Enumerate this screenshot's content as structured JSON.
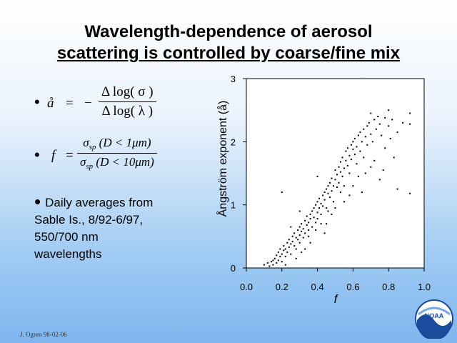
{
  "title": {
    "line1": "Wavelength-dependence of aerosol",
    "line2": "scattering is controlled by coarse/fine mix"
  },
  "formulas": {
    "angstrom": {
      "lhs": "å",
      "eq": "=",
      "minus": "−",
      "numerator": "Δ log( σ )",
      "denominator": "Δ log( λ )"
    },
    "fraction": {
      "lhs": "f",
      "eq": "=",
      "num_sym": "σ",
      "num_sub": "sp",
      "num_arg": " (D < 1μm)",
      "den_sym": "σ",
      "den_sub": "sp",
      "den_arg": " (D < 10μm)"
    }
  },
  "note": {
    "bullet": "•",
    "line1": "Daily averages from",
    "line2": "Sable Is., 8/92-6/97,",
    "line3": "550/700 nm",
    "line4": "wavelengths"
  },
  "footer": "J. Ogren 98-02-06",
  "logo": {
    "text": "NOAA",
    "icon": "noaa-logo-icon"
  },
  "chart_data": {
    "type": "scatter",
    "xlabel": "f",
    "ylabel": "Ångström exponent (å)",
    "xlim": [
      0,
      1.0
    ],
    "ylim": [
      0,
      3
    ],
    "xticks": [
      "0.0",
      "0.2",
      "0.4",
      "0.6",
      "0.8",
      "1.0"
    ],
    "yticks": [
      "0",
      "1",
      "2",
      "3"
    ],
    "grid": false,
    "marker_color": "#000000",
    "points": [
      [
        0.1,
        0.05
      ],
      [
        0.12,
        0.08
      ],
      [
        0.13,
        0.03
      ],
      [
        0.14,
        0.1
      ],
      [
        0.15,
        0.12
      ],
      [
        0.15,
        0.05
      ],
      [
        0.16,
        0.15
      ],
      [
        0.17,
        0.08
      ],
      [
        0.17,
        0.2
      ],
      [
        0.18,
        0.12
      ],
      [
        0.18,
        0.25
      ],
      [
        0.19,
        0.18
      ],
      [
        0.19,
        0.3
      ],
      [
        0.2,
        0.22
      ],
      [
        0.2,
        0.1
      ],
      [
        0.21,
        0.28
      ],
      [
        0.21,
        0.35
      ],
      [
        0.22,
        0.3
      ],
      [
        0.22,
        0.18
      ],
      [
        0.23,
        0.4
      ],
      [
        0.23,
        0.25
      ],
      [
        0.24,
        0.33
      ],
      [
        0.24,
        0.45
      ],
      [
        0.25,
        0.38
      ],
      [
        0.25,
        0.22
      ],
      [
        0.26,
        0.5
      ],
      [
        0.26,
        0.42
      ],
      [
        0.27,
        0.35
      ],
      [
        0.27,
        0.55
      ],
      [
        0.28,
        0.48
      ],
      [
        0.28,
        0.3
      ],
      [
        0.29,
        0.6
      ],
      [
        0.29,
        0.45
      ],
      [
        0.3,
        0.52
      ],
      [
        0.3,
        0.65
      ],
      [
        0.3,
        0.4
      ],
      [
        0.31,
        0.58
      ],
      [
        0.31,
        0.7
      ],
      [
        0.32,
        0.62
      ],
      [
        0.32,
        0.48
      ],
      [
        0.33,
        0.75
      ],
      [
        0.33,
        0.55
      ],
      [
        0.34,
        0.68
      ],
      [
        0.34,
        0.82
      ],
      [
        0.35,
        0.72
      ],
      [
        0.35,
        0.6
      ],
      [
        0.36,
        0.85
      ],
      [
        0.36,
        0.78
      ],
      [
        0.37,
        0.65
      ],
      [
        0.37,
        0.9
      ],
      [
        0.38,
        0.8
      ],
      [
        0.38,
        0.95
      ],
      [
        0.39,
        0.72
      ],
      [
        0.39,
        1.0
      ],
      [
        0.4,
        0.88
      ],
      [
        0.4,
        1.05
      ],
      [
        0.4,
        0.78
      ],
      [
        0.41,
        0.95
      ],
      [
        0.41,
        1.1
      ],
      [
        0.42,
        1.02
      ],
      [
        0.42,
        0.85
      ],
      [
        0.43,
        1.15
      ],
      [
        0.43,
        0.98
      ],
      [
        0.44,
        1.2
      ],
      [
        0.44,
        1.08
      ],
      [
        0.45,
        1.25
      ],
      [
        0.45,
        0.95
      ],
      [
        0.46,
        1.18
      ],
      [
        0.46,
        1.3
      ],
      [
        0.47,
        1.12
      ],
      [
        0.47,
        1.35
      ],
      [
        0.48,
        1.22
      ],
      [
        0.48,
        1.42
      ],
      [
        0.49,
        1.05
      ],
      [
        0.49,
        1.3
      ],
      [
        0.5,
        1.4
      ],
      [
        0.5,
        1.55
      ],
      [
        0.51,
        1.28
      ],
      [
        0.51,
        1.48
      ],
      [
        0.52,
        1.6
      ],
      [
        0.52,
        1.35
      ],
      [
        0.53,
        1.52
      ],
      [
        0.53,
        1.68
      ],
      [
        0.54,
        1.45
      ],
      [
        0.54,
        1.75
      ],
      [
        0.55,
        1.58
      ],
      [
        0.55,
        1.3
      ],
      [
        0.56,
        1.7
      ],
      [
        0.56,
        1.85
      ],
      [
        0.57,
        1.62
      ],
      [
        0.57,
        1.9
      ],
      [
        0.58,
        1.78
      ],
      [
        0.58,
        1.5
      ],
      [
        0.59,
        1.95
      ],
      [
        0.59,
        1.72
      ],
      [
        0.6,
        1.88
      ],
      [
        0.6,
        2.0
      ],
      [
        0.61,
        1.8
      ],
      [
        0.61,
        2.05
      ],
      [
        0.62,
        1.65
      ],
      [
        0.62,
        1.92
      ],
      [
        0.63,
        2.1
      ],
      [
        0.64,
        1.85
      ],
      [
        0.64,
        2.15
      ],
      [
        0.65,
        2.0
      ],
      [
        0.66,
        2.2
      ],
      [
        0.66,
        1.75
      ],
      [
        0.67,
        2.08
      ],
      [
        0.68,
        2.25
      ],
      [
        0.68,
        1.95
      ],
      [
        0.69,
        2.3
      ],
      [
        0.7,
        2.12
      ],
      [
        0.7,
        2.45
      ],
      [
        0.71,
        2.0
      ],
      [
        0.72,
        2.35
      ],
      [
        0.73,
        2.2
      ],
      [
        0.74,
        2.4
      ],
      [
        0.75,
        2.28
      ],
      [
        0.76,
        2.1
      ],
      [
        0.78,
        2.38
      ],
      [
        0.8,
        2.5
      ],
      [
        0.8,
        2.25
      ],
      [
        0.82,
        2.35
      ],
      [
        0.85,
        2.15
      ],
      [
        0.88,
        2.3
      ],
      [
        0.92,
        2.45
      ],
      [
        0.92,
        2.28
      ],
      [
        0.92,
        1.18
      ],
      [
        0.85,
        1.25
      ],
      [
        0.75,
        1.4
      ],
      [
        0.65,
        1.2
      ],
      [
        0.55,
        1.05
      ],
      [
        0.48,
        0.85
      ],
      [
        0.42,
        0.7
      ],
      [
        0.35,
        0.5
      ],
      [
        0.3,
        0.9
      ],
      [
        0.25,
        0.65
      ],
      [
        0.2,
        1.2
      ],
      [
        0.4,
        1.45
      ],
      [
        0.45,
        0.7
      ],
      [
        0.6,
        1.3
      ],
      [
        0.7,
        1.6
      ],
      [
        0.78,
        1.9
      ],
      [
        0.83,
        1.75
      ],
      [
        0.36,
        0.4
      ],
      [
        0.28,
        0.15
      ],
      [
        0.22,
        0.05
      ],
      [
        0.33,
        0.3
      ],
      [
        0.44,
        0.55
      ],
      [
        0.5,
        0.95
      ],
      [
        0.58,
        1.15
      ],
      [
        0.63,
        1.45
      ],
      [
        0.72,
        1.7
      ],
      [
        0.77,
        1.55
      ],
      [
        0.81,
        2.05
      ],
      [
        0.67,
        1.5
      ],
      [
        0.53,
        1.2
      ],
      [
        0.46,
        0.9
      ],
      [
        0.39,
        0.6
      ],
      [
        0.31,
        0.25
      ]
    ]
  }
}
